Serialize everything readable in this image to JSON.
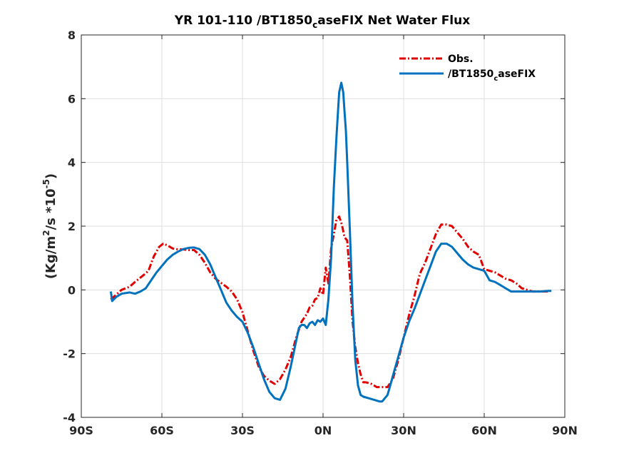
{
  "chart_data": {
    "type": "line",
    "title": {
      "prefix": "YR 101-110 /BT1850",
      "sub": "c",
      "suffix": "aseFIX  Net Water Flux"
    },
    "ylabel": {
      "part1": "(Kg/m",
      "sup1": "2",
      "part2": "/s *10",
      "sup2": "-5",
      "part3": ")"
    },
    "xlabel": "",
    "xlim": [
      -90,
      90
    ],
    "ylim": [
      -4,
      8
    ],
    "grid": true,
    "legend_position": "top-right",
    "x_ticks": [
      {
        "value": -90,
        "label": "90S"
      },
      {
        "value": -60,
        "label": "60S"
      },
      {
        "value": -30,
        "label": "30S"
      },
      {
        "value": 0,
        "label": "0N"
      },
      {
        "value": 30,
        "label": "30N"
      },
      {
        "value": 60,
        "label": "60N"
      },
      {
        "value": 90,
        "label": "90N"
      }
    ],
    "y_ticks": [
      {
        "value": -4,
        "label": "-4"
      },
      {
        "value": -2,
        "label": "-2"
      },
      {
        "value": 0,
        "label": "0"
      },
      {
        "value": 2,
        "label": "2"
      },
      {
        "value": 4,
        "label": "4"
      },
      {
        "value": 6,
        "label": "6"
      },
      {
        "value": 8,
        "label": "8"
      }
    ],
    "series": [
      {
        "name": "Obs.",
        "color": "#e00000",
        "dash": "dashdot",
        "points": [
          [
            -79,
            -0.3
          ],
          [
            -77,
            -0.15
          ],
          [
            -75,
            0.0
          ],
          [
            -72,
            0.1
          ],
          [
            -70,
            0.25
          ],
          [
            -67,
            0.45
          ],
          [
            -65,
            0.6
          ],
          [
            -63,
            1.05
          ],
          [
            -61,
            1.35
          ],
          [
            -59.5,
            1.45
          ],
          [
            -58,
            1.4
          ],
          [
            -56,
            1.3
          ],
          [
            -54,
            1.27
          ],
          [
            -52,
            1.27
          ],
          [
            -50,
            1.25
          ],
          [
            -48,
            1.25
          ],
          [
            -46,
            1.1
          ],
          [
            -44,
            0.85
          ],
          [
            -42,
            0.55
          ],
          [
            -40,
            0.35
          ],
          [
            -38,
            0.22
          ],
          [
            -36,
            0.1
          ],
          [
            -34,
            -0.05
          ],
          [
            -32,
            -0.3
          ],
          [
            -30,
            -0.7
          ],
          [
            -28,
            -1.3
          ],
          [
            -26,
            -1.9
          ],
          [
            -24,
            -2.4
          ],
          [
            -22,
            -2.7
          ],
          [
            -20,
            -2.85
          ],
          [
            -18,
            -2.95
          ],
          [
            -16,
            -2.8
          ],
          [
            -14,
            -2.5
          ],
          [
            -12,
            -2.1
          ],
          [
            -10,
            -1.5
          ],
          [
            -8,
            -1.0
          ],
          [
            -6,
            -0.75
          ],
          [
            -5,
            -0.55
          ],
          [
            -4,
            -0.5
          ],
          [
            -3,
            -0.3
          ],
          [
            -2,
            -0.25
          ],
          [
            -1,
            0.05
          ],
          [
            0,
            -0.15
          ],
          [
            1,
            0.7
          ],
          [
            2,
            0.2
          ],
          [
            3,
            1.3
          ],
          [
            4,
            1.75
          ],
          [
            5,
            2.2
          ],
          [
            6,
            2.3
          ],
          [
            7,
            2.05
          ],
          [
            8,
            1.65
          ],
          [
            9,
            1.55
          ],
          [
            10,
            0.4
          ],
          [
            11,
            -1.0
          ],
          [
            12,
            -1.8
          ],
          [
            13,
            -2.3
          ],
          [
            14,
            -2.65
          ],
          [
            15,
            -2.9
          ],
          [
            16,
            -2.9
          ],
          [
            18,
            -2.95
          ],
          [
            20,
            -3.05
          ],
          [
            22,
            -3.05
          ],
          [
            24,
            -3.05
          ],
          [
            26,
            -2.8
          ],
          [
            28,
            -2.2
          ],
          [
            30,
            -1.5
          ],
          [
            32,
            -0.8
          ],
          [
            34,
            -0.2
          ],
          [
            36,
            0.5
          ],
          [
            38,
            0.85
          ],
          [
            40,
            1.3
          ],
          [
            42,
            1.75
          ],
          [
            44,
            2.05
          ],
          [
            46,
            2.05
          ],
          [
            48,
            2.0
          ],
          [
            50,
            1.8
          ],
          [
            52,
            1.6
          ],
          [
            54,
            1.35
          ],
          [
            56,
            1.2
          ],
          [
            58,
            1.1
          ],
          [
            60,
            0.65
          ],
          [
            62,
            0.6
          ],
          [
            64,
            0.55
          ],
          [
            66,
            0.45
          ],
          [
            68,
            0.35
          ],
          [
            70,
            0.3
          ],
          [
            72,
            0.2
          ],
          [
            74,
            0.05
          ],
          [
            76,
            0.0
          ],
          [
            78,
            -0.05
          ],
          [
            80,
            -0.05
          ],
          [
            82,
            -0.05
          ],
          [
            84,
            -0.05
          ]
        ]
      },
      {
        "name": "/BT1850",
        "name_sub": "c",
        "name_suffix": "aseFIX",
        "color": "#0072bd",
        "dash": "solid",
        "points": [
          [
            -79,
            -0.05
          ],
          [
            -78.5,
            -0.35
          ],
          [
            -77,
            -0.22
          ],
          [
            -75,
            -0.12
          ],
          [
            -72,
            -0.08
          ],
          [
            -70,
            -0.12
          ],
          [
            -68,
            -0.05
          ],
          [
            -66,
            0.05
          ],
          [
            -64,
            0.3
          ],
          [
            -62,
            0.55
          ],
          [
            -60,
            0.75
          ],
          [
            -58,
            0.95
          ],
          [
            -56,
            1.1
          ],
          [
            -54,
            1.2
          ],
          [
            -52,
            1.28
          ],
          [
            -50,
            1.32
          ],
          [
            -48,
            1.33
          ],
          [
            -46,
            1.28
          ],
          [
            -44,
            1.1
          ],
          [
            -42,
            0.8
          ],
          [
            -40,
            0.4
          ],
          [
            -38,
            0.0
          ],
          [
            -36,
            -0.4
          ],
          [
            -34,
            -0.65
          ],
          [
            -32,
            -0.85
          ],
          [
            -30,
            -1.0
          ],
          [
            -28,
            -1.35
          ],
          [
            -26,
            -1.8
          ],
          [
            -24,
            -2.3
          ],
          [
            -22,
            -2.8
          ],
          [
            -20,
            -3.2
          ],
          [
            -18,
            -3.4
          ],
          [
            -16,
            -3.45
          ],
          [
            -14,
            -3.1
          ],
          [
            -12,
            -2.4
          ],
          [
            -10,
            -1.6
          ],
          [
            -9,
            -1.2
          ],
          [
            -8,
            -1.1
          ],
          [
            -7,
            -1.1
          ],
          [
            -6,
            -1.2
          ],
          [
            -5,
            -1.05
          ],
          [
            -4,
            -1.0
          ],
          [
            -3,
            -1.1
          ],
          [
            -2,
            -0.95
          ],
          [
            -1,
            -1.0
          ],
          [
            0,
            -0.9
          ],
          [
            1,
            -1.1
          ],
          [
            2,
            -0.3
          ],
          [
            3,
            1.0
          ],
          [
            4,
            3.2
          ],
          [
            5,
            4.8
          ],
          [
            6,
            6.2
          ],
          [
            6.8,
            6.5
          ],
          [
            7.5,
            6.2
          ],
          [
            8,
            5.6
          ],
          [
            8.5,
            5.0
          ],
          [
            9,
            4.0
          ],
          [
            10,
            1.8
          ],
          [
            11,
            -0.5
          ],
          [
            12,
            -2.2
          ],
          [
            13,
            -3.0
          ],
          [
            14,
            -3.3
          ],
          [
            15,
            -3.35
          ],
          [
            17,
            -3.4
          ],
          [
            19,
            -3.45
          ],
          [
            21,
            -3.5
          ],
          [
            22,
            -3.5
          ],
          [
            24,
            -3.3
          ],
          [
            25,
            -3.0
          ],
          [
            26,
            -2.7
          ],
          [
            28,
            -2.1
          ],
          [
            30,
            -1.5
          ],
          [
            32,
            -1.0
          ],
          [
            34,
            -0.6
          ],
          [
            36,
            -0.15
          ],
          [
            38,
            0.3
          ],
          [
            40,
            0.75
          ],
          [
            42,
            1.2
          ],
          [
            44,
            1.45
          ],
          [
            46,
            1.45
          ],
          [
            48,
            1.35
          ],
          [
            50,
            1.15
          ],
          [
            52,
            0.95
          ],
          [
            54,
            0.8
          ],
          [
            56,
            0.7
          ],
          [
            58,
            0.65
          ],
          [
            60,
            0.6
          ],
          [
            62,
            0.3
          ],
          [
            64,
            0.25
          ],
          [
            66,
            0.15
          ],
          [
            68,
            0.05
          ],
          [
            70,
            -0.05
          ],
          [
            72,
            -0.05
          ],
          [
            75,
            -0.05
          ],
          [
            78,
            -0.05
          ],
          [
            81,
            -0.05
          ],
          [
            84,
            -0.03
          ],
          [
            85,
            -0.03
          ]
        ]
      }
    ]
  }
}
